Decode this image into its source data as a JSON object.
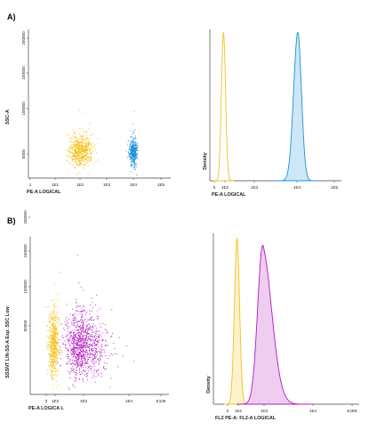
{
  "colors": {
    "yellow": "#f2c21a",
    "blue": "#1e90d6",
    "magenta": "#b01bbd",
    "axis": "#444444",
    "background": "#ffffff"
  },
  "panels": {
    "A": {
      "label": "A)"
    },
    "B": {
      "label": "B)"
    }
  },
  "chart_data": [
    {
      "id": "A-scatter",
      "type": "scatter",
      "title": "",
      "xlabel": "PE-A LOGICAL",
      "ylabel": "SSC-A",
      "x_scale": "log",
      "x_ticks": [
        "1",
        "1E1",
        "1E2",
        "1E3",
        "1E4",
        "1E5"
      ],
      "xlim_decades": [
        0,
        5.5
      ],
      "y_ticks": [
        "5000",
        "100000",
        "150000",
        "200000"
      ],
      "ylim": [
        0,
        260000
      ],
      "series": [
        {
          "color": "yellow",
          "center_log10_x": 2.0,
          "spread_log10_x": 0.22,
          "center_y": 48000,
          "spread_y": 14000,
          "points": 650
        },
        {
          "color": "blue",
          "center_log10_x": 4.0,
          "spread_log10_x": 0.07,
          "center_y": 45000,
          "spread_y": 12000,
          "points": 380
        }
      ]
    },
    {
      "id": "A-histogram",
      "type": "area",
      "title": "",
      "xlabel": "PE-A LOGICAL",
      "ylabel": "Density",
      "x_scale": "log",
      "x_ticks": [
        "0",
        "1E2",
        "1E3",
        "1E4",
        "1E5"
      ],
      "series": [
        {
          "color": "yellow",
          "fill": false,
          "peak_log10_x": 1.95,
          "width_log10": 0.07,
          "relative_height": 0.98
        },
        {
          "color": "blue",
          "fill": true,
          "peak_log10_x": 4.02,
          "width_log10": 0.1,
          "relative_height": 0.98
        }
      ]
    },
    {
      "id": "B-scatter",
      "type": "scatter",
      "title": "",
      "xlabel": "PE-A LOGICA L",
      "ylabel": "SSSNT LIN-SS-A Exp. SSC Low",
      "x_scale": "log",
      "x_ticks": [
        "0",
        "1E2",
        "1E3",
        "1E4",
        "E105"
      ],
      "y_ticks": [
        "50000",
        "100000",
        "150000",
        "200000"
      ],
      "ylim": [
        0,
        240000
      ],
      "series": [
        {
          "color": "yellow",
          "center_log10_x": 1.95,
          "spread_log10_x": 0.09,
          "center_y": 78000,
          "spread_y": 26000,
          "points": 620
        },
        {
          "color": "magenta",
          "center_log10_x": 2.95,
          "spread_log10_x": 0.28,
          "center_y": 72000,
          "spread_y": 24000,
          "points": 1100
        }
      ]
    },
    {
      "id": "B-histogram",
      "type": "area",
      "title": "",
      "xlabel": "FL2 PE-A: FL2-A LOGICAL",
      "ylabel": "Density",
      "x_scale": "log",
      "x_ticks": [
        "0",
        "1E2",
        "1E3",
        "1E4",
        "E1E5"
      ],
      "series": [
        {
          "color": "yellow",
          "fill": true,
          "peak_log10_x": 1.95,
          "width_log10": 0.1,
          "relative_height": 0.97
        },
        {
          "color": "magenta",
          "fill": true,
          "peak_log10_x": 2.95,
          "width_log10": 0.2,
          "relative_height": 0.93
        }
      ]
    }
  ]
}
